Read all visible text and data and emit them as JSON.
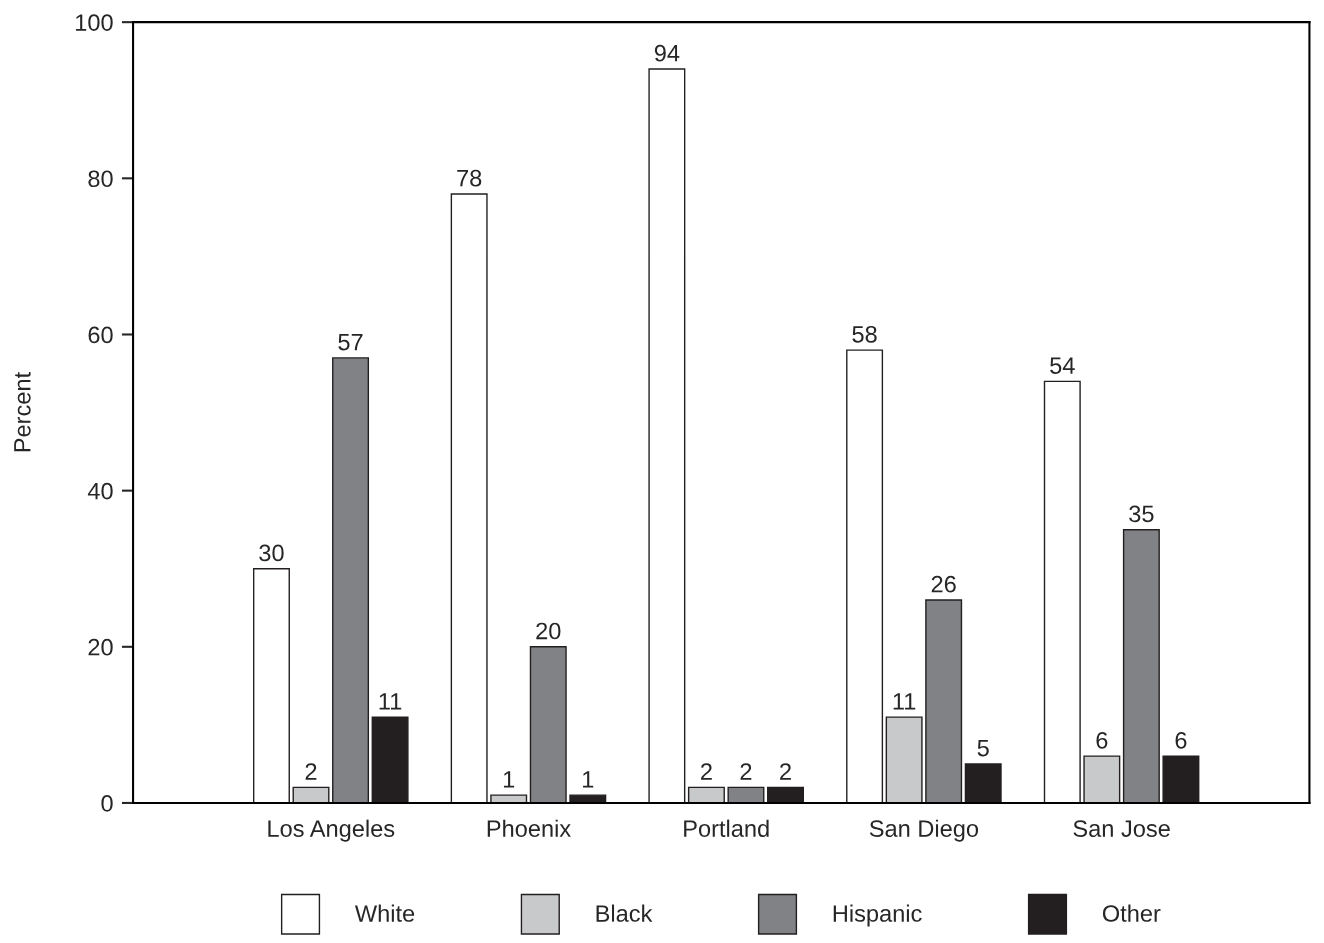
{
  "chart_data": {
    "type": "bar",
    "ylabel": "Percent",
    "categories": [
      "Los Angeles",
      "Phoenix",
      "Portland",
      "San Diego",
      "San Jose"
    ],
    "series": [
      {
        "name": "White",
        "color": "#ffffff",
        "values": [
          30,
          78,
          94,
          58,
          54
        ]
      },
      {
        "name": "Black",
        "color": "#c8c9cb",
        "values": [
          2,
          1,
          2,
          11,
          6
        ]
      },
      {
        "name": "Hispanic",
        "color": "#808285",
        "values": [
          57,
          20,
          2,
          26,
          35
        ]
      },
      {
        "name": "Other",
        "color": "#231f20",
        "values": [
          11,
          1,
          2,
          5,
          6
        ]
      }
    ],
    "ylim": [
      0,
      100
    ],
    "yticks": [
      0,
      20,
      40,
      60,
      80,
      100
    ],
    "data_labels": true,
    "grid": false,
    "legend": "bottom"
  }
}
